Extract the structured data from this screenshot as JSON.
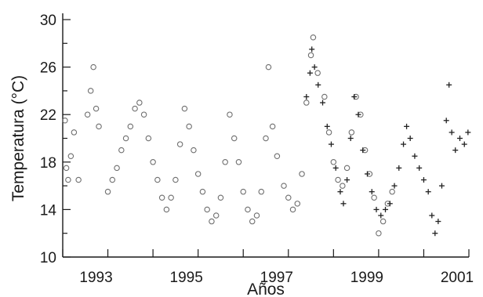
{
  "chart_data": {
    "type": "scatter",
    "xlabel": "Años",
    "ylabel": "Temperatura (°C)",
    "xlim": [
      1992,
      2001
    ],
    "ylim": [
      10,
      30
    ],
    "x_tick_labels": [
      "1993",
      "1995",
      "1997",
      "1999",
      "2001"
    ],
    "y_tick_labels": [
      "10",
      "14",
      "18",
      "22",
      "26",
      "30"
    ],
    "grid": false,
    "series": [
      {
        "marker": "circle",
        "color": "#6f6f6f",
        "points": [
          [
            1992.05,
            21.5
          ],
          [
            1992.08,
            17.5
          ],
          [
            1992.12,
            16.5
          ],
          [
            1992.18,
            18.5
          ],
          [
            1992.25,
            20.5
          ],
          [
            1992.35,
            16.5
          ],
          [
            1992.55,
            22.0
          ],
          [
            1992.62,
            24.0
          ],
          [
            1992.68,
            26.0
          ],
          [
            1992.74,
            22.5
          ],
          [
            1992.8,
            21.0
          ],
          [
            1993.0,
            15.5
          ],
          [
            1993.1,
            16.5
          ],
          [
            1993.2,
            17.5
          ],
          [
            1993.3,
            19.0
          ],
          [
            1993.4,
            20.0
          ],
          [
            1993.5,
            21.0
          ],
          [
            1993.6,
            22.5
          ],
          [
            1993.7,
            23.0
          ],
          [
            1993.8,
            22.0
          ],
          [
            1993.9,
            20.0
          ],
          [
            1994.0,
            18.0
          ],
          [
            1994.1,
            16.5
          ],
          [
            1994.2,
            15.0
          ],
          [
            1994.3,
            14.0
          ],
          [
            1994.4,
            15.0
          ],
          [
            1994.5,
            16.5
          ],
          [
            1994.6,
            19.5
          ],
          [
            1994.7,
            22.5
          ],
          [
            1994.8,
            21.0
          ],
          [
            1994.9,
            19.0
          ],
          [
            1995.0,
            17.0
          ],
          [
            1995.1,
            15.5
          ],
          [
            1995.2,
            14.0
          ],
          [
            1995.3,
            13.0
          ],
          [
            1995.4,
            13.5
          ],
          [
            1995.5,
            15.0
          ],
          [
            1995.6,
            18.0
          ],
          [
            1995.7,
            22.0
          ],
          [
            1995.8,
            20.0
          ],
          [
            1995.9,
            18.0
          ],
          [
            1996.0,
            15.5
          ],
          [
            1996.1,
            14.0
          ],
          [
            1996.2,
            13.0
          ],
          [
            1996.3,
            13.5
          ],
          [
            1996.4,
            15.5
          ],
          [
            1996.5,
            20.0
          ],
          [
            1996.56,
            26.0
          ],
          [
            1996.65,
            21.0
          ],
          [
            1996.75,
            18.5
          ],
          [
            1996.9,
            16.0
          ],
          [
            1997.0,
            15.0
          ],
          [
            1997.1,
            14.0
          ],
          [
            1997.2,
            14.5
          ],
          [
            1997.3,
            17.0
          ],
          [
            1997.4,
            23.0
          ],
          [
            1997.5,
            27.0
          ],
          [
            1997.55,
            28.5
          ],
          [
            1997.65,
            25.5
          ],
          [
            1997.8,
            23.5
          ],
          [
            1997.9,
            20.5
          ],
          [
            1998.0,
            18.0
          ],
          [
            1998.1,
            16.5
          ],
          [
            1998.2,
            16.0
          ],
          [
            1998.3,
            17.5
          ],
          [
            1998.4,
            20.5
          ],
          [
            1998.5,
            23.5
          ],
          [
            1998.6,
            22.0
          ],
          [
            1998.7,
            19.0
          ],
          [
            1998.8,
            17.0
          ],
          [
            1998.9,
            15.0
          ],
          [
            1999.0,
            12.0
          ],
          [
            1999.1,
            13.0
          ],
          [
            1999.2,
            14.5
          ],
          [
            1999.3,
            15.5
          ]
        ]
      },
      {
        "marker": "plus",
        "color": "#222222",
        "points": [
          [
            1997.4,
            23.5
          ],
          [
            1997.48,
            25.5
          ],
          [
            1997.52,
            27.5
          ],
          [
            1997.58,
            26.0
          ],
          [
            1997.66,
            24.5
          ],
          [
            1997.76,
            23.0
          ],
          [
            1997.86,
            21.0
          ],
          [
            1997.95,
            19.5
          ],
          [
            1998.05,
            17.5
          ],
          [
            1998.15,
            15.5
          ],
          [
            1998.22,
            14.5
          ],
          [
            1998.3,
            16.5
          ],
          [
            1998.38,
            20.0
          ],
          [
            1998.46,
            23.5
          ],
          [
            1998.55,
            22.0
          ],
          [
            1998.65,
            19.0
          ],
          [
            1998.75,
            17.0
          ],
          [
            1998.85,
            15.5
          ],
          [
            1998.95,
            14.0
          ],
          [
            1999.05,
            13.5
          ],
          [
            1999.15,
            14.0
          ],
          [
            1999.25,
            14.5
          ],
          [
            1999.35,
            16.0
          ],
          [
            1999.45,
            17.5
          ],
          [
            1999.55,
            19.5
          ],
          [
            1999.62,
            21.0
          ],
          [
            1999.7,
            20.0
          ],
          [
            1999.8,
            18.5
          ],
          [
            1999.9,
            17.5
          ],
          [
            2000.0,
            16.5
          ],
          [
            2000.1,
            15.5
          ],
          [
            2000.18,
            13.5
          ],
          [
            2000.25,
            12.0
          ],
          [
            2000.32,
            13.0
          ],
          [
            2000.4,
            16.0
          ],
          [
            2000.5,
            21.5
          ],
          [
            2000.56,
            24.5
          ],
          [
            2000.62,
            20.5
          ],
          [
            2000.7,
            19.0
          ],
          [
            2000.8,
            20.0
          ],
          [
            2000.9,
            19.5
          ],
          [
            2000.98,
            20.5
          ]
        ]
      }
    ]
  }
}
